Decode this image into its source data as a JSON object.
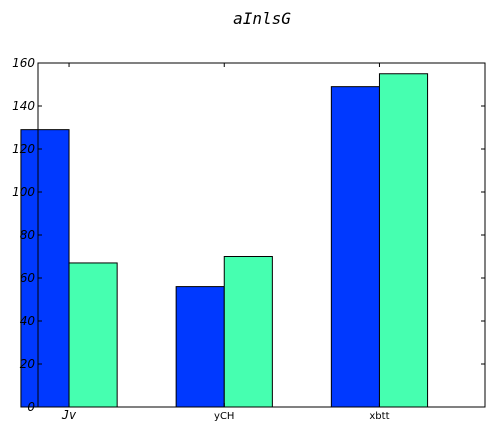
{
  "chart_data": {
    "type": "bar",
    "title": "aInlsG",
    "categories": [
      "Jv",
      "yCH",
      "xbtt"
    ],
    "series": [
      {
        "values": [
          129,
          56,
          149
        ],
        "color": "#0039ff"
      },
      {
        "values": [
          67,
          70,
          155
        ],
        "color": "#46ffb0"
      }
    ],
    "ylim": [
      0,
      160
    ],
    "yticks": [
      0,
      20,
      40,
      60,
      80,
      100,
      120,
      140,
      160
    ],
    "xlabel": "",
    "ylabel": "",
    "grid": false,
    "legend": "none"
  }
}
